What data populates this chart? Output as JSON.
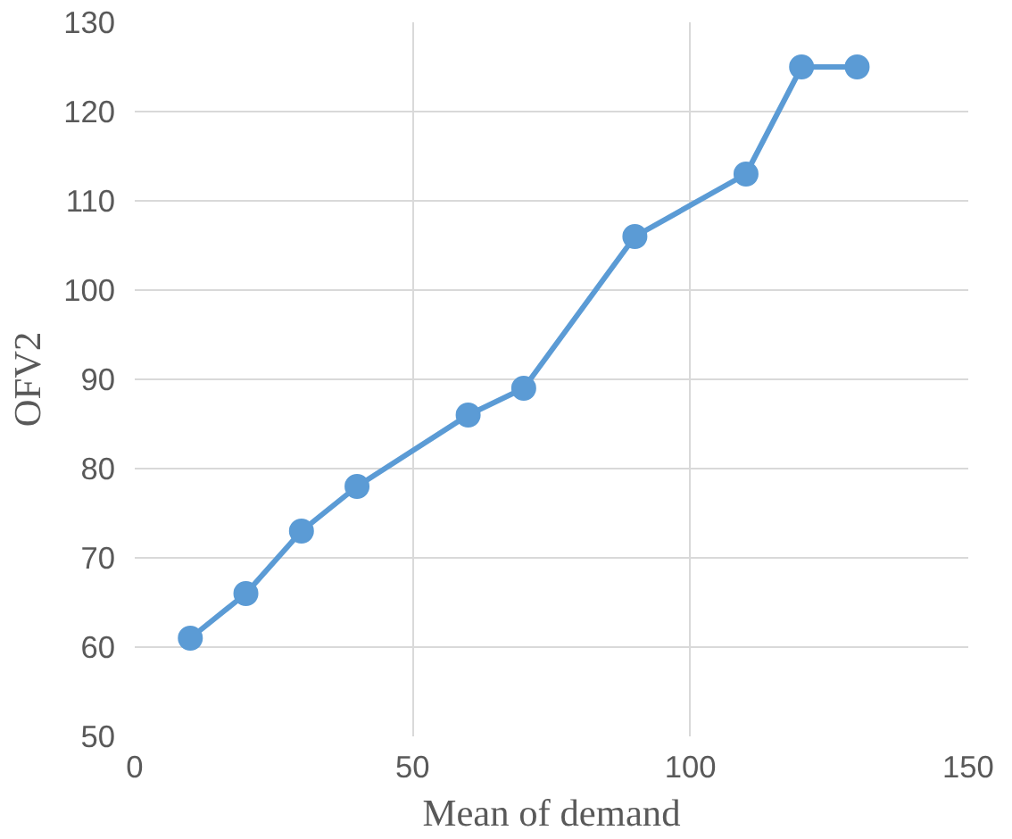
{
  "chart_data": {
    "type": "line",
    "xlabel": "Mean of demand",
    "ylabel": "OFV2",
    "x": [
      10,
      20,
      30,
      40,
      60,
      70,
      90,
      110,
      120,
      130
    ],
    "series": [
      {
        "color": "#5b9bd5",
        "values": [
          61,
          66,
          73,
          78,
          86,
          89,
          106,
          113,
          125,
          125
        ]
      }
    ],
    "xlim": [
      0,
      150
    ],
    "ylim": [
      50,
      130
    ],
    "xticks": [
      0,
      50,
      100,
      150
    ],
    "yticks": [
      50,
      60,
      70,
      80,
      90,
      100,
      110,
      120,
      130
    ],
    "grid": true,
    "marker": "circle",
    "line_style": "solid"
  }
}
